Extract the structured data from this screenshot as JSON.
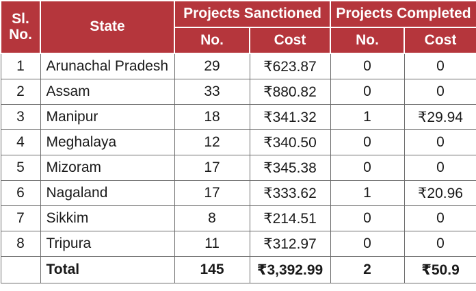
{
  "header": {
    "sl_no": "Sl. No.",
    "state": "State",
    "sanctioned_group": "Projects Sanctioned",
    "completed_group": "Projects Completed",
    "no": "No.",
    "cost": "Cost"
  },
  "rows": [
    {
      "sl": "1",
      "state": "Arunachal Pradesh",
      "s_no": "29",
      "s_cost": "₹623.87",
      "c_no": "0",
      "c_cost": "0"
    },
    {
      "sl": "2",
      "state": "Assam",
      "s_no": "33",
      "s_cost": "₹880.82",
      "c_no": "0",
      "c_cost": "0"
    },
    {
      "sl": "3",
      "state": "Manipur",
      "s_no": "18",
      "s_cost": "₹341.32",
      "c_no": "1",
      "c_cost": "₹29.94"
    },
    {
      "sl": "4",
      "state": "Meghalaya",
      "s_no": "12",
      "s_cost": "₹340.50",
      "c_no": "0",
      "c_cost": "0"
    },
    {
      "sl": "5",
      "state": "Mizoram",
      "s_no": "17",
      "s_cost": "₹345.38",
      "c_no": "0",
      "c_cost": "0"
    },
    {
      "sl": "6",
      "state": "Nagaland",
      "s_no": "17",
      "s_cost": "₹333.62",
      "c_no": "1",
      "c_cost": "₹20.96"
    },
    {
      "sl": "7",
      "state": "Sikkim",
      "s_no": "8",
      "s_cost": "₹214.51",
      "c_no": "0",
      "c_cost": "0"
    },
    {
      "sl": "8",
      "state": "Tripura",
      "s_no": "11",
      "s_cost": "₹312.97",
      "c_no": "0",
      "c_cost": "0"
    }
  ],
  "total": {
    "label": "Total",
    "s_no": "145",
    "s_cost": "₹3,392.99",
    "c_no": "2",
    "c_cost": "₹50.9"
  },
  "colors": {
    "header_bg": "#b5363c",
    "header_text": "#ffffff",
    "grid": "#6b6b6b"
  }
}
